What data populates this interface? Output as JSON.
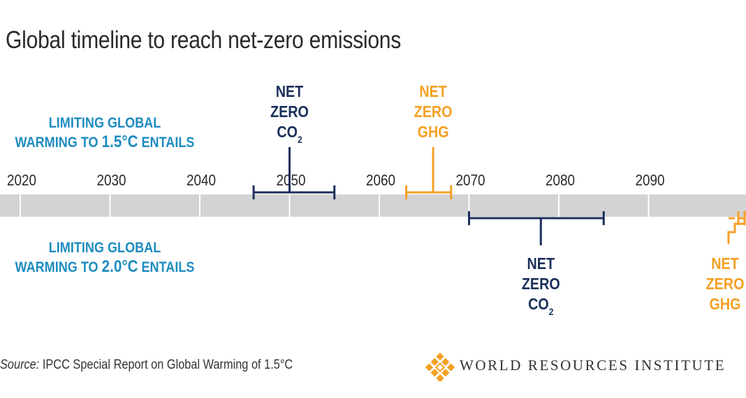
{
  "title": "Global timeline to reach net-zero emissions",
  "colors": {
    "navy": "#1b2f5b",
    "orange": "#f4a024",
    "blue": "#1e8cc0",
    "bar": "#d3d3d3",
    "text": "#2a2a2a"
  },
  "conditions": [
    {
      "prefix": "LIMITING GLOBAL",
      "line2_prefix": "WARMING TO ",
      "temp": "1.5°C",
      "suffix": " ENTAILS"
    },
    {
      "prefix": "LIMITING GLOBAL",
      "line2_prefix": "WARMING TO ",
      "temp": "2.0°C",
      "suffix": " ENTAILS"
    }
  ],
  "chart_data": {
    "type": "timeline",
    "title": "Global timeline to reach net-zero emissions",
    "x_range": [
      2015,
      2102
    ],
    "ticks": [
      2020,
      2030,
      2040,
      2050,
      2060,
      2070,
      2080,
      2090
    ],
    "tick_labels": [
      "2020",
      "2030",
      "2040",
      "2050",
      "2060",
      "2070",
      "2080",
      "2090"
    ],
    "series": [
      {
        "scenario": "Limiting global warming to 1.5°C",
        "milestone": "NET ZERO CO2",
        "label_lines": [
          "NET",
          "ZERO",
          "CO"
        ],
        "subscript": "2",
        "color": "navy",
        "side": "above",
        "range": [
          2046,
          2055
        ],
        "mid": 2050
      },
      {
        "scenario": "Limiting global warming to 1.5°C",
        "milestone": "NET ZERO GHG",
        "label_lines": [
          "NET",
          "ZERO",
          "GHG"
        ],
        "subscript": "",
        "color": "orange",
        "side": "above",
        "range": [
          2063,
          2068
        ],
        "mid": 2066
      },
      {
        "scenario": "Limiting global warming to 2.0°C",
        "milestone": "NET ZERO CO2",
        "label_lines": [
          "NET",
          "ZERO",
          "CO"
        ],
        "subscript": "2",
        "color": "navy",
        "side": "below",
        "range": [
          2070,
          2085
        ],
        "mid": 2078
      },
      {
        "scenario": "Limiting global warming to 2.0°C",
        "milestone": "NET ZERO GHG",
        "label_lines": [
          "NET",
          "ZERO",
          "GHG"
        ],
        "subscript": "",
        "color": "orange",
        "side": "below",
        "range": [
          2100,
          2102
        ],
        "mid": 2101
      }
    ]
  },
  "source": {
    "label": "Source:",
    "text": " IPCC Special Report on Global Warming of 1.5°C"
  },
  "logo": {
    "name": "WRI logo",
    "text": "WORLD RESOURCES INSTITUTE",
    "icon": "wri-logo-icon"
  }
}
